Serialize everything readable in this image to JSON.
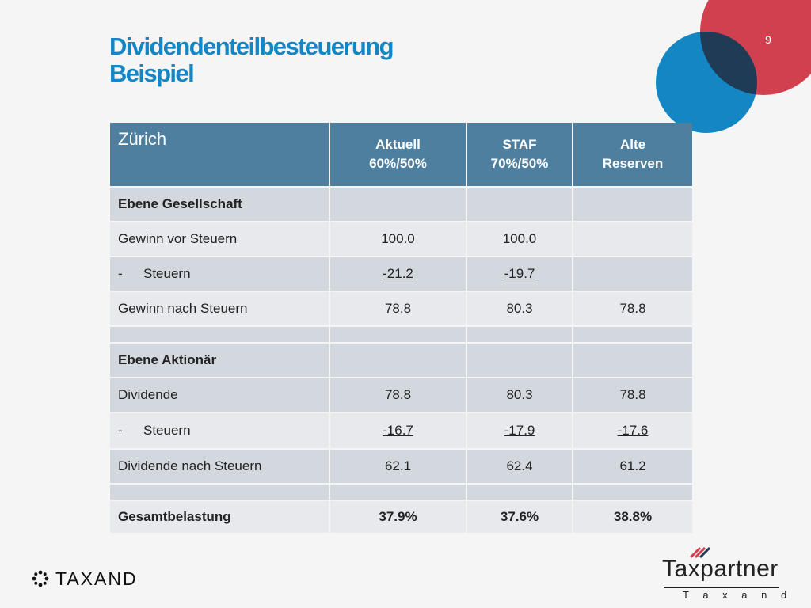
{
  "slide": {
    "number": "9",
    "title_line1": "Dividendenteilbesteuerung",
    "title_line2": "Beispiel"
  },
  "colors": {
    "title_blue": "#1486c3",
    "header_blue": "#4f7f9f",
    "circle_red": "#d0404f",
    "circle_blue": "#1486c3",
    "circle_overlap": "#1f3b55",
    "row_dark": "#d3d8df",
    "row_light": "#e7e9ed"
  },
  "table": {
    "header": {
      "title": "Zürich",
      "col1_line1": "Aktuell",
      "col1_line2": "60%/50%",
      "col2_line1": "STAF",
      "col2_line2": "70%/50%",
      "col3_line1": "Alte",
      "col3_line2": "Reserven"
    },
    "rows": [
      {
        "label": "Ebene Gesellschaft",
        "c1": "",
        "c2": "",
        "c3": ""
      },
      {
        "label": "Gewinn vor Steuern",
        "c1": "100.0",
        "c2": "100.0",
        "c3": ""
      },
      {
        "label": "Steuern",
        "dash": "-",
        "c1": "-21.2",
        "c2": "-19.7",
        "c3": ""
      },
      {
        "label": "Gewinn nach Steuern",
        "c1": "78.8",
        "c2": "80.3",
        "c3": "78.8"
      },
      {
        "label": "",
        "c1": "",
        "c2": "",
        "c3": ""
      },
      {
        "label": "Ebene Aktionär",
        "c1": "",
        "c2": "",
        "c3": ""
      },
      {
        "label": "Dividende",
        "c1": "78.8",
        "c2": "80.3",
        "c3": "78.8"
      },
      {
        "label": "Steuern",
        "dash": "-",
        "c1": "-16.7",
        "c2": "-17.9",
        "c3": "-17.6"
      },
      {
        "label": "Dividende nach Steuern",
        "c1": "62.1",
        "c2": "62.4",
        "c3": "61.2"
      },
      {
        "label": "",
        "c1": "",
        "c2": "",
        "c3": ""
      },
      {
        "label": "Gesamtbelastung",
        "c1": "37.9%",
        "c2": "37.6%",
        "c3": "38.8%"
      }
    ]
  },
  "footer": {
    "left_logo_text": "TAXAND",
    "left_logo_icon": "taxand-flower-icon",
    "right_logo_text": "Taxpartner",
    "right_logo_sub": "Taxand",
    "right_logo_sub_spaced": "T a x a n d",
    "right_logo_icon": "taxpartner-stripes-icon"
  }
}
